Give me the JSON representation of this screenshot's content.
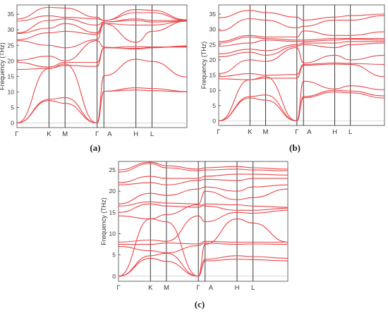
{
  "figure": {
    "panel_labels": [
      "(a)",
      "(b)",
      "(c)"
    ]
  },
  "chart_data": [
    {
      "type": "line",
      "panel": "(a)",
      "ylabel": "Frequency (THz)",
      "xlabel": "",
      "path_labels": [
        "Γ",
        "K",
        "M",
        "Γ",
        "A",
        "H",
        "L"
      ],
      "path_positions": [
        0,
        0.577,
        0.866,
        1.443,
        1.565,
        2.142,
        2.431
      ],
      "xlim": [
        0,
        3.06
      ],
      "ylim": [
        -1.5,
        38
      ],
      "yticks": [
        0,
        5,
        10,
        15,
        20,
        25,
        30,
        35
      ],
      "line_color": "#e8474b",
      "series": [
        {
          "x": [
            0,
            0.577,
            0.866,
            1.443,
            1.565,
            2.142,
            2.431,
            3.06
          ],
          "y": [
            0,
            7.2,
            6.3,
            0,
            10.2,
            10.6,
            10.4,
            10.0
          ]
        },
        {
          "x": [
            0,
            0.577,
            0.866,
            1.443,
            1.565,
            2.142,
            2.431,
            3.06
          ],
          "y": [
            0,
            7.6,
            8.2,
            0,
            10.2,
            11.3,
            11.1,
            10.1
          ]
        },
        {
          "x": [
            0,
            0.577,
            0.866,
            1.443,
            1.565,
            2.142,
            2.431,
            3.06
          ],
          "y": [
            0,
            17.5,
            19.0,
            0,
            15.2,
            20.5,
            19.8,
            14.8
          ]
        },
        {
          "x": [
            0,
            0.577,
            0.866,
            1.443,
            1.565,
            2.142,
            2.431,
            3.06
          ],
          "y": [
            17.2,
            17.6,
            18.5,
            18.2,
            24.2,
            24.6,
            24.5,
            24.4
          ]
        },
        {
          "x": [
            0,
            0.577,
            0.866,
            1.443,
            1.565,
            2.142,
            2.431,
            3.06
          ],
          "y": [
            19.5,
            18.0,
            19.5,
            19.5,
            24.2,
            24.0,
            24.3,
            24.6
          ]
        },
        {
          "x": [
            0,
            0.577,
            0.866,
            1.443,
            1.565,
            2.142,
            2.431,
            3.06
          ],
          "y": [
            20.2,
            21.5,
            20.0,
            26.5,
            24.4,
            23.8,
            24.2,
            24.8
          ]
        },
        {
          "x": [
            0,
            0.577,
            0.866,
            1.443,
            1.565,
            2.142,
            2.431,
            3.06
          ],
          "y": [
            26.5,
            25.0,
            24.2,
            26.8,
            32.0,
            26.0,
            29.5,
            32.8
          ]
        },
        {
          "x": [
            0,
            0.577,
            0.866,
            1.443,
            1.565,
            2.142,
            2.431,
            3.06
          ],
          "y": [
            26.8,
            29.0,
            29.5,
            28.5,
            32.0,
            31.5,
            31.5,
            32.8
          ]
        },
        {
          "x": [
            0,
            0.577,
            0.866,
            1.443,
            1.565,
            2.142,
            2.431,
            3.06
          ],
          "y": [
            28.8,
            30.5,
            32.0,
            29.0,
            32.5,
            33.0,
            32.5,
            32.8
          ]
        },
        {
          "x": [
            0,
            0.577,
            0.866,
            1.443,
            1.565,
            2.142,
            2.431,
            3.06
          ],
          "y": [
            29.0,
            33.0,
            33.5,
            31.5,
            32.5,
            33.5,
            33.0,
            33.0
          ]
        },
        {
          "x": [
            0,
            0.577,
            0.866,
            1.443,
            1.565,
            2.142,
            2.431,
            3.06
          ],
          "y": [
            32.8,
            34.5,
            34.0,
            33.5,
            33.0,
            35.5,
            35.5,
            33.0
          ]
        },
        {
          "x": [
            0,
            0.577,
            0.866,
            1.443,
            1.565,
            2.142,
            2.431,
            3.06
          ],
          "y": [
            33.5,
            37.2,
            37.0,
            34.0,
            33.0,
            36.5,
            36.3,
            33.2
          ]
        }
      ]
    },
    {
      "type": "line",
      "panel": "(b)",
      "ylabel": "Frequency (THz)",
      "xlabel": "",
      "path_labels": [
        "Γ",
        "K",
        "M",
        "Γ",
        "A",
        "H",
        "L"
      ],
      "path_positions": [
        0,
        0.577,
        0.866,
        1.443,
        1.565,
        2.142,
        2.431
      ],
      "xlim": [
        0,
        3.06
      ],
      "ylim": [
        -1.5,
        38
      ],
      "yticks": [
        0,
        5,
        10,
        15,
        20,
        25,
        30,
        35
      ],
      "line_color": "#e8474b",
      "series": [
        {
          "x": [
            0,
            0.577,
            0.866,
            1.443,
            1.565,
            2.142,
            2.431,
            3.06
          ],
          "y": [
            0,
            7.5,
            6.8,
            0,
            7.6,
            9.5,
            9.2,
            7.5
          ]
        },
        {
          "x": [
            0,
            0.577,
            0.866,
            1.443,
            1.565,
            2.142,
            2.431,
            3.06
          ],
          "y": [
            0,
            8.0,
            8.5,
            0,
            8.0,
            10.0,
            9.8,
            8.2
          ]
        },
        {
          "x": [
            0,
            0.577,
            0.866,
            1.443,
            1.565,
            2.142,
            2.431,
            3.06
          ],
          "y": [
            0,
            13.5,
            14.5,
            0,
            13.0,
            10.5,
            11.5,
            10.2
          ]
        },
        {
          "x": [
            0,
            0.577,
            0.866,
            1.443,
            1.565,
            2.142,
            2.431,
            3.06
          ],
          "y": [
            13.8,
            13.5,
            14.0,
            14.0,
            18.2,
            18.6,
            18.5,
            14.5
          ]
        },
        {
          "x": [
            0,
            0.577,
            0.866,
            1.443,
            1.565,
            2.142,
            2.431,
            3.06
          ],
          "y": [
            14.5,
            15.5,
            15.0,
            15.2,
            18.5,
            19.0,
            18.8,
            18.5
          ]
        },
        {
          "x": [
            0,
            0.577,
            0.866,
            1.443,
            1.565,
            2.142,
            2.431,
            3.06
          ],
          "y": [
            15.5,
            20.0,
            19.5,
            24.0,
            19.0,
            21.5,
            20.0,
            21.5
          ]
        },
        {
          "x": [
            0,
            0.577,
            0.866,
            1.443,
            1.565,
            2.142,
            2.431,
            3.06
          ],
          "y": [
            21.0,
            22.5,
            21.5,
            24.5,
            25.0,
            24.0,
            25.0,
            25.5
          ]
        },
        {
          "x": [
            0,
            0.577,
            0.866,
            1.443,
            1.565,
            2.142,
            2.431,
            3.06
          ],
          "y": [
            22.0,
            23.5,
            23.0,
            25.0,
            25.5,
            25.5,
            26.0,
            26.0
          ]
        },
        {
          "x": [
            0,
            0.577,
            0.866,
            1.443,
            1.565,
            2.142,
            2.431,
            3.06
          ],
          "y": [
            24.5,
            25.5,
            26.5,
            26.0,
            26.0,
            26.5,
            26.8,
            26.5
          ]
        },
        {
          "x": [
            0,
            0.577,
            0.866,
            1.443,
            1.565,
            2.142,
            2.431,
            3.06
          ],
          "y": [
            25.5,
            27.5,
            27.0,
            26.5,
            26.5,
            27.0,
            27.0,
            27.0
          ]
        },
        {
          "x": [
            0,
            0.577,
            0.866,
            1.443,
            1.565,
            2.142,
            2.431,
            3.06
          ],
          "y": [
            26.0,
            28.0,
            27.5,
            27.5,
            29.5,
            28.0,
            28.0,
            29.2
          ]
        },
        {
          "x": [
            0,
            0.577,
            0.866,
            1.443,
            1.565,
            2.142,
            2.431,
            3.06
          ],
          "y": [
            29.5,
            33.5,
            33.0,
            30.5,
            31.0,
            33.0,
            33.0,
            34.5
          ]
        },
        {
          "x": [
            0,
            0.577,
            0.866,
            1.443,
            1.565,
            2.142,
            2.431,
            3.06
          ],
          "y": [
            33.8,
            36.2,
            35.5,
            34.0,
            33.0,
            34.0,
            34.5,
            35.0
          ]
        }
      ]
    },
    {
      "type": "line",
      "panel": "(c)",
      "ylabel": "Frequency (THz)",
      "xlabel": "",
      "path_labels": [
        "Γ",
        "K",
        "M",
        "Γ",
        "A",
        "H",
        "L"
      ],
      "path_positions": [
        0,
        0.577,
        0.866,
        1.443,
        1.565,
        2.142,
        2.431
      ],
      "xlim": [
        0,
        3.06
      ],
      "ylim": [
        -1.2,
        27
      ],
      "yticks": [
        0,
        5,
        10,
        15,
        20,
        25
      ],
      "line_color": "#e8474b",
      "series": [
        {
          "x": [
            0,
            0.577,
            0.866,
            1.443,
            1.565,
            2.142,
            2.431,
            3.06
          ],
          "y": [
            0,
            4.2,
            3.5,
            0,
            3.6,
            4.0,
            3.9,
            3.6
          ]
        },
        {
          "x": [
            0,
            0.577,
            0.866,
            1.443,
            1.565,
            2.142,
            2.431,
            3.06
          ],
          "y": [
            0,
            4.8,
            5.4,
            0,
            4.0,
            4.8,
            4.6,
            4.2
          ]
        },
        {
          "x": [
            0,
            0.577,
            0.866,
            1.443,
            1.565,
            2.142,
            2.431,
            3.06
          ],
          "y": [
            0,
            13.5,
            12.8,
            0,
            7.5,
            13.5,
            12.5,
            8.0
          ]
        },
        {
          "x": [
            0,
            0.577,
            0.866,
            1.443,
            1.565,
            2.142,
            2.431,
            3.06
          ],
          "y": [
            7.0,
            6.0,
            5.5,
            7.2,
            7.8,
            7.5,
            7.6,
            7.5
          ]
        },
        {
          "x": [
            0,
            0.577,
            0.866,
            1.443,
            1.565,
            2.142,
            2.431,
            3.06
          ],
          "y": [
            7.5,
            7.5,
            7.8,
            7.6,
            8.2,
            8.0,
            8.0,
            8.0
          ]
        },
        {
          "x": [
            0,
            0.577,
            0.866,
            1.443,
            1.565,
            2.142,
            2.431,
            3.06
          ],
          "y": [
            8.0,
            8.5,
            8.2,
            14.2,
            12.8,
            15.0,
            14.8,
            15.5
          ]
        },
        {
          "x": [
            0,
            0.577,
            0.866,
            1.443,
            1.565,
            2.142,
            2.431,
            3.06
          ],
          "y": [
            14.2,
            13.5,
            14.5,
            16.8,
            16.5,
            15.5,
            15.5,
            16.0
          ]
        },
        {
          "x": [
            0,
            0.577,
            0.866,
            1.443,
            1.565,
            2.142,
            2.431,
            3.06
          ],
          "y": [
            15.0,
            17.0,
            16.5,
            16.2,
            17.0,
            16.8,
            16.5,
            16.2
          ]
        },
        {
          "x": [
            0,
            0.577,
            0.866,
            1.443,
            1.565,
            2.142,
            2.431,
            3.06
          ],
          "y": [
            16.5,
            17.5,
            17.2,
            17.0,
            20.0,
            18.0,
            18.5,
            20.5
          ]
        },
        {
          "x": [
            0,
            0.577,
            0.866,
            1.443,
            1.565,
            2.142,
            2.431,
            3.06
          ],
          "y": [
            17.0,
            19.5,
            19.0,
            20.5,
            21.0,
            20.0,
            21.0,
            21.5
          ]
        },
        {
          "x": [
            0,
            0.577,
            0.866,
            1.443,
            1.565,
            2.142,
            2.431,
            3.06
          ],
          "y": [
            21.5,
            22.0,
            21.5,
            22.5,
            22.8,
            22.5,
            23.0,
            23.0
          ]
        },
        {
          "x": [
            0,
            0.577,
            0.866,
            1.443,
            1.565,
            2.142,
            2.431,
            3.06
          ],
          "y": [
            22.0,
            23.5,
            23.0,
            23.0,
            23.5,
            24.0,
            24.0,
            23.8
          ]
        },
        {
          "x": [
            0,
            0.577,
            0.866,
            1.443,
            1.565,
            2.142,
            2.431,
            3.06
          ],
          "y": [
            24.5,
            26.5,
            25.5,
            24.8,
            25.0,
            25.2,
            25.0,
            24.8
          ]
        },
        {
          "x": [
            0,
            0.577,
            0.866,
            1.443,
            1.565,
            2.142,
            2.431,
            3.06
          ],
          "y": [
            25.0,
            26.8,
            26.0,
            25.2,
            25.5,
            25.8,
            25.5,
            25.2
          ]
        }
      ]
    }
  ]
}
